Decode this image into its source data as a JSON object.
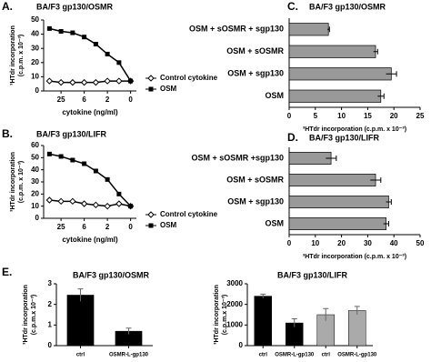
{
  "chart_data": [
    {
      "type": "line",
      "label": "A.",
      "title": "BA/F3 gp130/OSMR",
      "ylabel": [
        "³HTdr incorporation",
        "(c.p.m. x 10⁻³)"
      ],
      "xlabel": "cytokine (ng/ml)",
      "categories": [
        null,
        "25",
        null,
        "6",
        null,
        "2",
        null,
        "0"
      ],
      "series": [
        {
          "name": "Control cytokine",
          "color": "#000000",
          "marker": "diamond",
          "values": [
            7,
            6,
            6,
            6,
            6,
            7,
            7,
            7
          ]
        },
        {
          "name": "OSM",
          "color": "#000000",
          "marker": "square",
          "values": [
            44,
            42,
            41,
            38,
            33,
            26,
            20,
            7
          ]
        }
      ],
      "ylim": [
        0,
        50
      ],
      "yticks": [
        0,
        10,
        20,
        30,
        40,
        50
      ]
    },
    {
      "type": "line",
      "label": "B.",
      "title": "BA/F3 gp130/LIFR",
      "ylabel": [
        "³HTdr incorporation",
        "(c.p.m. x 10⁻³)"
      ],
      "xlabel": "cytokine (ng/ml)",
      "categories": [
        null,
        "25",
        null,
        "6",
        null,
        "2",
        null,
        "0"
      ],
      "series": [
        {
          "name": "Control cytokine",
          "color": "#000000",
          "marker": "diamond",
          "values": [
            15,
            14,
            14,
            12,
            11,
            10,
            12,
            10
          ]
        },
        {
          "name": "OSM",
          "color": "#000000",
          "marker": "square",
          "values": [
            53,
            51,
            48,
            45,
            39,
            32,
            20,
            10
          ]
        }
      ],
      "ylim": [
        0,
        60
      ],
      "yticks": [
        0,
        10,
        20,
        30,
        40,
        50,
        60
      ]
    },
    {
      "type": "hbar",
      "label": "C.",
      "title": "BA/F3 gp130/OSMR",
      "xlabel": "³HTdr incorporation (c.p.m. x 10⁻³)",
      "categories": [
        "OSM + sOSMR + sgp130",
        "OSM + sOSMR",
        "OSM + sgp130",
        "OSM"
      ],
      "values": [
        7.5,
        16.5,
        19.5,
        17.5
      ],
      "errors": [
        0.2,
        0.4,
        1,
        0.6
      ],
      "color": "#999999",
      "xlim": [
        0,
        25
      ],
      "xticks": [
        0,
        5,
        10,
        15,
        20,
        25
      ]
    },
    {
      "type": "hbar",
      "label": "D.",
      "title": "BA/F3 gp130/LIFR",
      "xlabel": "³HTdr incorporation (c.p.m. x 10⁻³)",
      "categories": [
        "OSM + sOSMR +sgp130",
        "OSM + sOSMR",
        "OSM + sgp130",
        "OSM"
      ],
      "values": [
        16,
        33,
        38,
        37
      ],
      "errors": [
        2,
        2,
        1,
        1
      ],
      "color": "#999999",
      "xlim": [
        0,
        50
      ],
      "xticks": [
        0,
        10,
        20,
        30,
        40,
        50
      ]
    },
    {
      "type": "bar",
      "label": "E.",
      "title": "BA/F3 gp130/OSMR",
      "ylabel": [
        "³HTdr incorporation",
        "(c.p.m.x 10⁻³)"
      ],
      "categories": [
        "ctrl",
        "OSMR-L-gp130"
      ],
      "values": [
        2.45,
        0.7
      ],
      "errors": [
        0.3,
        0.15
      ],
      "colors": [
        "#000000",
        "#000000"
      ],
      "ylim": [
        0,
        3
      ],
      "yticks": [
        0,
        1,
        2,
        3
      ]
    },
    {
      "type": "bar",
      "title": "BA/F3 gp130/LIFR",
      "ylabel": [
        "³HTdr incorporation",
        "(c.p.m.x 10⁻³)"
      ],
      "categories": [
        "ctrl",
        "OSMR-L-gp130",
        "ctrl",
        "OSMR-L-gp130"
      ],
      "values": [
        2400,
        1100,
        1500,
        1700
      ],
      "errors": [
        100,
        200,
        300,
        200
      ],
      "colors": [
        "#000000",
        "#000000",
        "#aaaaaa",
        "#aaaaaa"
      ],
      "ylim": [
        0,
        3000
      ],
      "yticks": [
        0,
        1000,
        2000,
        3000
      ]
    }
  ]
}
